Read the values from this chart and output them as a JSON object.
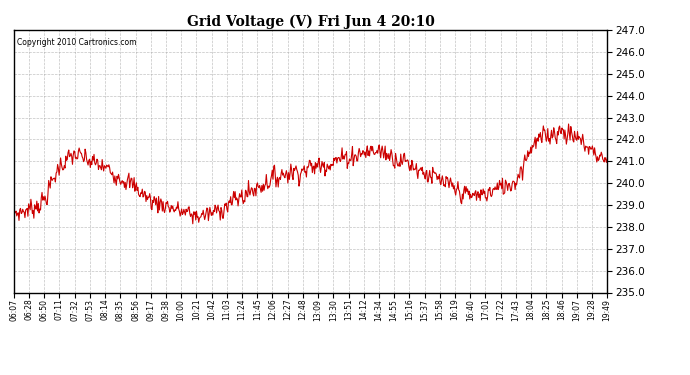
{
  "title": "Grid Voltage (V) Fri Jun 4 20:10",
  "copyright": "Copyright 2010 Cartronics.com",
  "line_color": "#cc0000",
  "bg_color": "#ffffff",
  "plot_bg_color": "#ffffff",
  "grid_color": "#aaaaaa",
  "ylim": [
    235.0,
    247.0
  ],
  "yticks": [
    235.0,
    236.0,
    237.0,
    238.0,
    239.0,
    240.0,
    241.0,
    242.0,
    243.0,
    244.0,
    245.0,
    246.0,
    247.0
  ],
  "xtick_labels": [
    "06:07",
    "06:28",
    "06:50",
    "07:11",
    "07:32",
    "07:53",
    "08:14",
    "08:35",
    "08:56",
    "09:17",
    "09:38",
    "10:00",
    "10:21",
    "10:42",
    "11:03",
    "11:24",
    "11:45",
    "12:06",
    "12:27",
    "12:48",
    "13:09",
    "13:30",
    "13:51",
    "14:12",
    "14:34",
    "14:55",
    "15:16",
    "15:37",
    "15:58",
    "16:19",
    "16:40",
    "17:01",
    "17:22",
    "17:43",
    "18:04",
    "18:25",
    "18:46",
    "19:07",
    "19:28",
    "19:49"
  ],
  "voltage_profile": [
    238.6,
    238.8,
    239.2,
    240.8,
    241.3,
    241.0,
    240.7,
    240.3,
    239.8,
    239.2,
    239.0,
    238.7,
    238.5,
    238.6,
    239.0,
    239.4,
    239.8,
    240.2,
    240.5,
    240.6,
    240.8,
    241.0,
    241.2,
    241.4,
    241.5,
    241.2,
    240.9,
    240.5,
    240.1,
    239.7,
    239.4,
    239.5,
    239.8,
    240.1,
    241.7,
    242.2,
    242.4,
    242.1,
    241.5,
    241.0
  ],
  "seed": 7,
  "n_points": 800
}
